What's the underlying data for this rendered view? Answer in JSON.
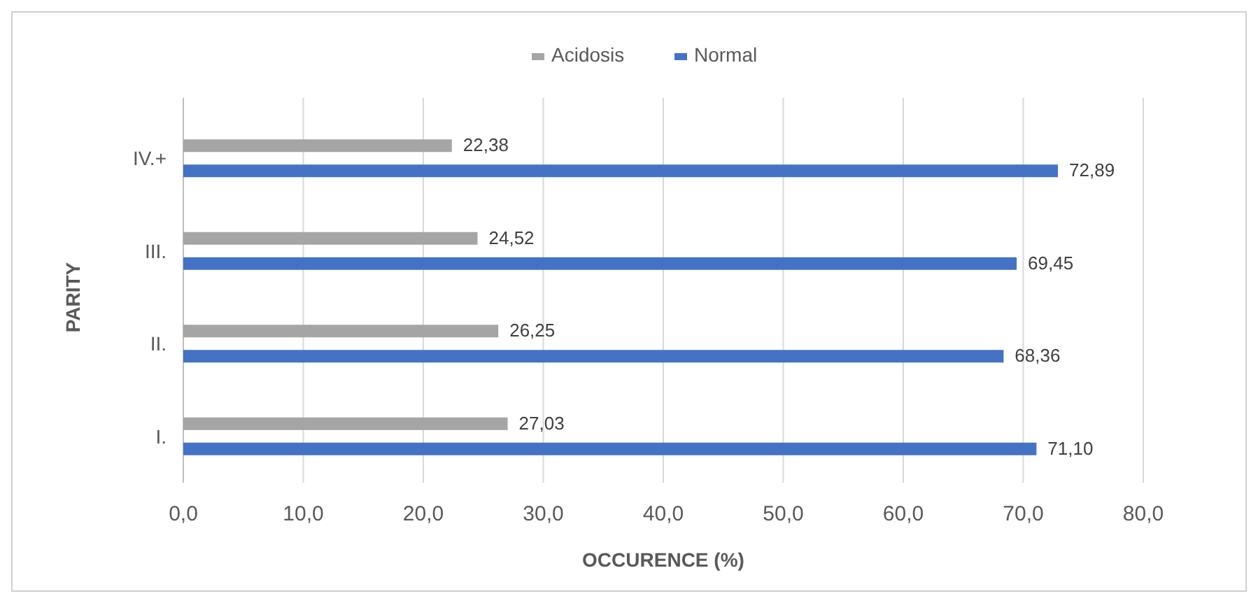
{
  "chart_data": {
    "type": "bar",
    "orientation": "horizontal",
    "xlabel": "OCCURENCE (%)",
    "ylabel": "PARITY",
    "categories": [
      "IV.+",
      "III.",
      "II.",
      "I."
    ],
    "series": [
      {
        "name": "Acidosis",
        "color": "#a5a5a5",
        "values": [
          22.38,
          24.52,
          26.25,
          27.03
        ],
        "value_labels": [
          "22,38",
          "24,52",
          "26,25",
          "27,03"
        ]
      },
      {
        "name": "Normal",
        "color": "#4472c4",
        "values": [
          72.89,
          69.45,
          68.36,
          71.1
        ],
        "value_labels": [
          "72,89",
          "69,45",
          "68,36",
          "71,10"
        ]
      }
    ],
    "xlim": [
      0,
      80
    ],
    "xticks": [
      {
        "value": 0,
        "label": "0,0"
      },
      {
        "value": 10,
        "label": "10,0"
      },
      {
        "value": 20,
        "label": "20,0"
      },
      {
        "value": 30,
        "label": "30,0"
      },
      {
        "value": 40,
        "label": "40,0"
      },
      {
        "value": 50,
        "label": "50,0"
      },
      {
        "value": 60,
        "label": "60,0"
      },
      {
        "value": 70,
        "label": "70,0"
      },
      {
        "value": 80,
        "label": "80,0"
      }
    ],
    "grid": "x",
    "legend": "top"
  }
}
